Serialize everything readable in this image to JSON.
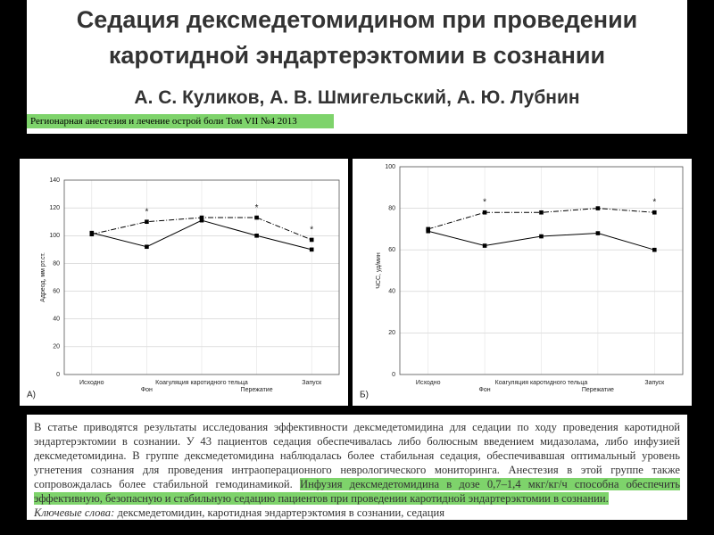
{
  "header": {
    "title_lines": [
      "Седация дексмедетомидином при проведении",
      "каротидной эндартерэктомии в сознании"
    ],
    "authors": "А. С. Куликов, А. В. Шмигельский, А. Ю. Лубнин",
    "journal": "Регионарная анестезия и лечение острой боли Том VII №4 2013"
  },
  "chart_data": [
    {
      "type": "line",
      "panel_label": "А)",
      "ylabel": "Адреод, мм рт.ст.",
      "categories": [
        "Исходно",
        "Фон",
        "Коагуляция каротидного тельца",
        "Пережатие",
        "Запуск"
      ],
      "series": [
        {
          "color": "#000000",
          "dash": "dashdot",
          "values": [
            101,
            110,
            113,
            113,
            97
          ]
        },
        {
          "color": "#000000",
          "dash": "solid",
          "values": [
            102,
            92,
            111,
            100,
            90
          ]
        }
      ],
      "ylim": [
        0,
        140
      ],
      "yticks": [
        0,
        20,
        40,
        60,
        80,
        100,
        120,
        140
      ],
      "grid": true,
      "annotations": [
        {
          "text": "*",
          "category": "Фон",
          "y": 117
        },
        {
          "text": "*",
          "category": "Пережатие",
          "y": 120
        },
        {
          "text": "*",
          "category": "Запуск",
          "y": 104
        }
      ]
    },
    {
      "type": "line",
      "panel_label": "Б)",
      "ylabel": "ЧСС, уд/мин",
      "categories": [
        "Исходно",
        "Фон",
        "Коагуляция каротидного тельца",
        "Пережатие",
        "Запуск"
      ],
      "series": [
        {
          "color": "#000000",
          "dash": "dashdot",
          "values": [
            70,
            78,
            78,
            80,
            78
          ]
        },
        {
          "color": "#000000",
          "dash": "solid",
          "values": [
            69,
            62,
            66.5,
            68,
            60
          ]
        }
      ],
      "ylim": [
        0,
        100
      ],
      "yticks": [
        0,
        20,
        40,
        60,
        80,
        100
      ],
      "grid": true,
      "annotations": [
        {
          "text": "*",
          "category": "Фон",
          "y": 83
        },
        {
          "text": "*",
          "category": "Запуск",
          "y": 83
        }
      ]
    }
  ],
  "abstract": {
    "plain": "В статье приводятся результаты исследования эффективности дексмедетомидина для седации по ходу проведения каротидной эндартерэктомии в сознании. У 43 пациентов седация обеспечивалась либо болюсным введением мидазолама, либо инфузией дексмедетомидина. В группе дексмедетомидина наблюдалась более стабильная седация, обеспечивавшая оптимальный уровень угнетения сознания для проведения интраоперационного неврологического мониторинга. Анестезия в этой группе также сопровождалась более стабильной гемодинамикой.",
    "highlighted": "Инфузия дексмедетомидина в дозе 0,7–1,4 мкг/кг/ч способна обеспечить эффективную, безопасную и стабильную седацию пациентов при проведении каротидной эндартерэктомии в сознании.",
    "keywords_label": "Ключевые слова:",
    "keywords": "дексмедетомидин, каротидная эндартерэктомия в сознании, седация"
  }
}
